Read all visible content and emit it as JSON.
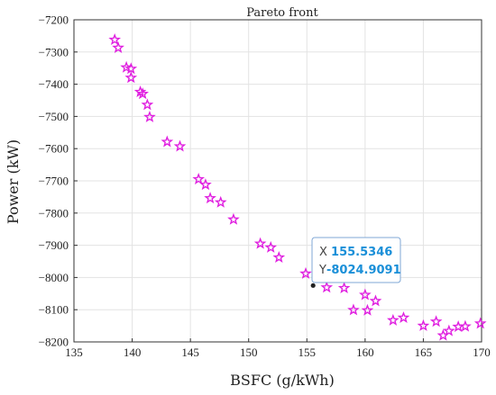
{
  "chart_data": {
    "type": "scatter",
    "title": "Pareto front",
    "xlabel": "BSFC (g/kWh)",
    "ylabel": "Power (kW)",
    "xlim": [
      135,
      170
    ],
    "ylim": [
      -8200,
      -7200
    ],
    "x_ticks": [
      135,
      140,
      145,
      150,
      155,
      160,
      165,
      170
    ],
    "y_ticks": [
      -7200,
      -7300,
      -7400,
      -7500,
      -7600,
      -7700,
      -7800,
      -7900,
      -8000,
      -8100,
      -8200
    ],
    "grid": true,
    "marker": "pentagram",
    "marker_color": "#e020e0",
    "series": [
      {
        "x": [
          138.5,
          138.8,
          139.5,
          139.9,
          139.9,
          140.7,
          140.9,
          141.3,
          141.5,
          143.0,
          144.1,
          145.7,
          146.3,
          146.7,
          147.6,
          148.7,
          151.0,
          151.9,
          152.6,
          154.9,
          156.7,
          158.2,
          159.0,
          160.0,
          160.2,
          160.9,
          162.4,
          163.3,
          166.1,
          165.0,
          166.7,
          167.2,
          168.0,
          168.6,
          169.9
        ],
        "y": [
          -7262,
          -7287,
          -7348,
          -7352,
          -7380,
          -7424,
          -7430,
          -7464,
          -7502,
          -7579,
          -7593,
          -7695,
          -7712,
          -7754,
          -7767,
          -7820,
          -7895,
          -7907,
          -7938,
          -7988,
          -8031,
          -8033,
          -8101,
          -8054,
          -8102,
          -8073,
          -8133,
          -8125,
          -8137,
          -8150,
          -8180,
          -8166,
          -8153,
          -8152,
          -8143
        ]
      }
    ],
    "datatip": {
      "x_prefix": "X",
      "x_value": "155.5346",
      "y_prefix": "Y",
      "y_value": "-8024.9091",
      "point_x": 155.5346,
      "point_y": -8024.9091
    }
  }
}
